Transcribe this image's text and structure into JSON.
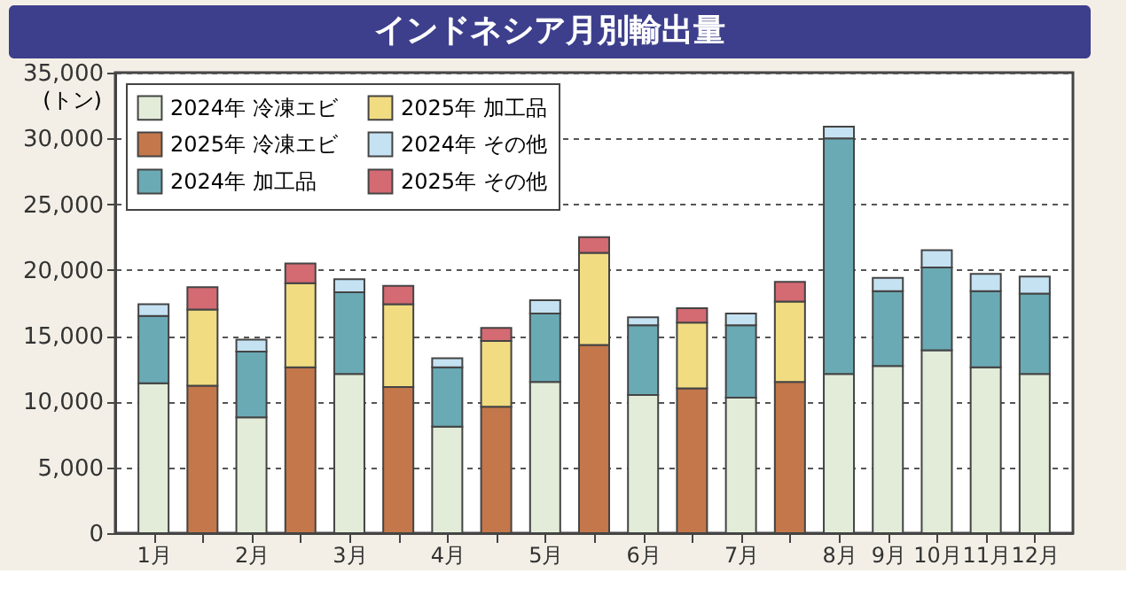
{
  "chart_data": {
    "type": "bar",
    "title": "インドネシア月別輸出量",
    "ylabel": "(トン)",
    "categories": [
      "1月",
      null,
      "2月",
      null,
      "3月",
      null,
      "4月",
      null,
      "5月",
      null,
      "6月",
      null,
      "7月",
      null,
      "8月",
      "9月",
      "10月",
      "11月",
      "12月"
    ],
    "stacked": true,
    "ylim": [
      0,
      35000
    ],
    "yticks": [
      0,
      {
        "value": 5000,
        "label": "5,000"
      },
      {
        "value": 10000,
        "label": "10,000"
      },
      {
        "value": 15000,
        "label": "15,000"
      },
      {
        "value": 20000,
        "label": "20,000"
      },
      {
        "value": 25000,
        "label": "25,000"
      },
      {
        "value": 30000,
        "label": "30,000"
      },
      {
        "value": 35000,
        "label": "35,000"
      }
    ],
    "grid": "y",
    "legend": "top left",
    "series": [
      {
        "name": "2024年 冷凍エビ",
        "color": "#e2ecd9",
        "values": [
          11400,
          null,
          8800,
          null,
          12100,
          null,
          8100,
          null,
          11500,
          null,
          10500,
          null,
          10300,
          null,
          12100,
          12700,
          13900,
          12600,
          12100
        ]
      },
      {
        "name": "2024年 加工品",
        "color": "#6aaab5",
        "values": [
          5100,
          null,
          5000,
          null,
          6200,
          null,
          4500,
          null,
          5200,
          null,
          5300,
          null,
          5500,
          null,
          17900,
          5700,
          6300,
          5800,
          6100
        ]
      },
      {
        "name": "2024年 その他",
        "color": "#c5e2f2",
        "values": [
          900,
          null,
          900,
          null,
          1000,
          null,
          700,
          null,
          1000,
          null,
          600,
          null,
          900,
          null,
          900,
          1000,
          1300,
          1300,
          1300
        ]
      },
      {
        "name": "2025年 冷凍エビ",
        "color": "#c4774a",
        "values": [
          null,
          11200,
          null,
          12600,
          null,
          11100,
          null,
          9600,
          null,
          14300,
          null,
          11000,
          null,
          11500,
          null,
          null,
          null,
          null,
          null
        ]
      },
      {
        "name": "2025年 加工品",
        "color": "#f2dc82",
        "values": [
          null,
          5800,
          null,
          6400,
          null,
          6300,
          null,
          5000,
          null,
          7000,
          null,
          5000,
          null,
          6100,
          null,
          null,
          null,
          null,
          null
        ]
      },
      {
        "name": "2025年 その他",
        "color": "#d46a72",
        "values": [
          null,
          1700,
          null,
          1500,
          null,
          1400,
          null,
          1000,
          null,
          1200,
          null,
          1100,
          null,
          1500,
          null,
          null,
          null,
          null,
          null
        ]
      }
    ]
  }
}
